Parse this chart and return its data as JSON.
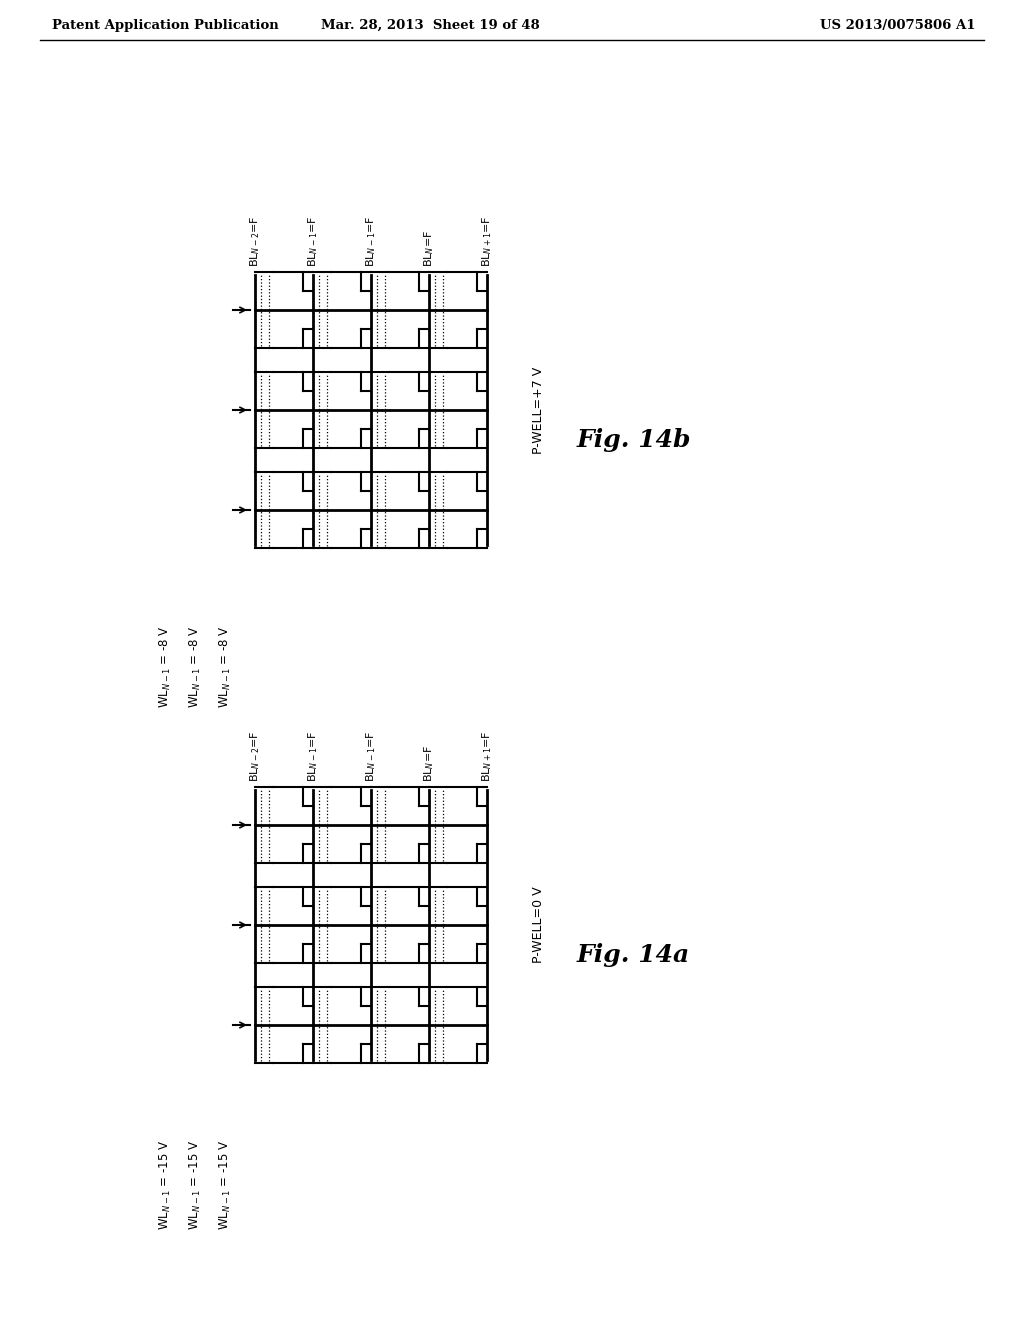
{
  "header_left": "Patent Application Publication",
  "header_mid": "Mar. 28, 2013  Sheet 19 of 48",
  "header_right": "US 2013/0075806 A1",
  "fig_a_label": "Fig. 14a",
  "fig_b_label": "Fig. 14b",
  "fig_a_pwell": "P-WELL=0 V",
  "fig_b_pwell": "P-WELL=+7 V",
  "wl_labels_a": [
    "WL$_{N-1}$ = -15 V",
    "WL$_{N-1}$ = -15 V",
    "WL$_{N-1}$ = -15 V"
  ],
  "wl_labels_b": [
    "WL$_{N-1}$ = -8 V",
    "WL$_{N-1}$ = -8 V",
    "WL$_{N-1}$ = -8 V"
  ],
  "bl_labels": [
    "BL$_{N-2}$=F",
    "BL$_{N-1}$=F",
    "BL$_{N-1}$=F",
    "BL$_{N}$=F",
    "BL$_{N+1}$=F"
  ],
  "bg_color": "#ffffff",
  "line_color": "#000000"
}
